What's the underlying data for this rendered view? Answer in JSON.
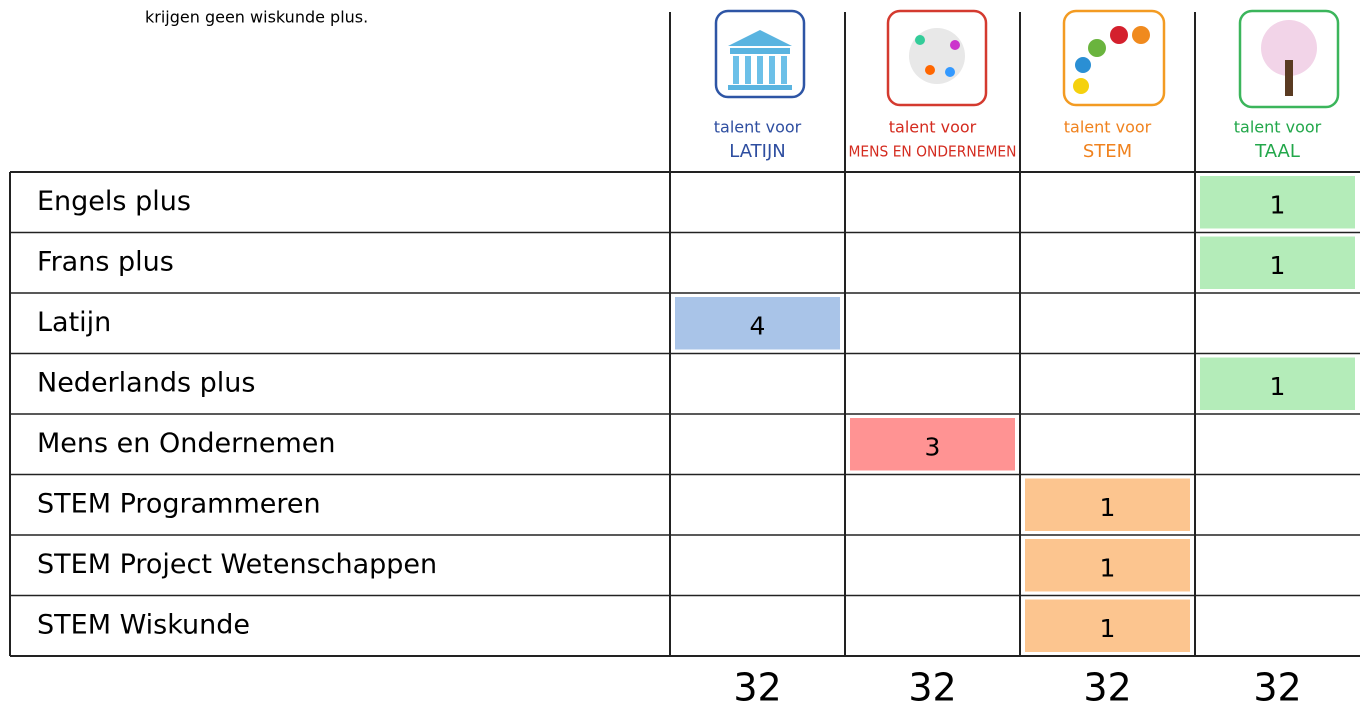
{
  "header": {
    "note": "krijgen geen wiskunde plus."
  },
  "columns": [
    {
      "line1": "talent voor",
      "line2": "LATIJN",
      "color": "#2e4ea0",
      "fill": "#a9c4e8"
    },
    {
      "line1": "talent voor",
      "line2": "MENS EN ONDERNEMEN",
      "color": "#d42b1f",
      "fill": "#ff9393"
    },
    {
      "line1": "talent voor",
      "line2": "STEM",
      "color": "#f0821e",
      "fill": "#fcc58f"
    },
    {
      "line1": "talent voor",
      "line2": "TAAL",
      "color": "#22a74a",
      "fill": "#b4ecb9"
    }
  ],
  "rows": [
    {
      "label": "Engels plus",
      "cells": [
        null,
        null,
        null,
        1
      ]
    },
    {
      "label": "Frans plus",
      "cells": [
        null,
        null,
        null,
        1
      ]
    },
    {
      "label": "Latijn",
      "cells": [
        4,
        null,
        null,
        null
      ]
    },
    {
      "label": "Nederlands plus",
      "cells": [
        null,
        null,
        null,
        1
      ]
    },
    {
      "label": "Mens en Ondernemen",
      "cells": [
        null,
        3,
        null,
        null
      ]
    },
    {
      "label": "STEM Programmeren",
      "cells": [
        null,
        null,
        1,
        null
      ]
    },
    {
      "label": "STEM Project Wetenschappen",
      "cells": [
        null,
        null,
        1,
        null
      ]
    },
    {
      "label": "STEM Wiskunde",
      "cells": [
        null,
        null,
        1,
        null
      ]
    }
  ],
  "totals": [
    32,
    32,
    32,
    32
  ]
}
